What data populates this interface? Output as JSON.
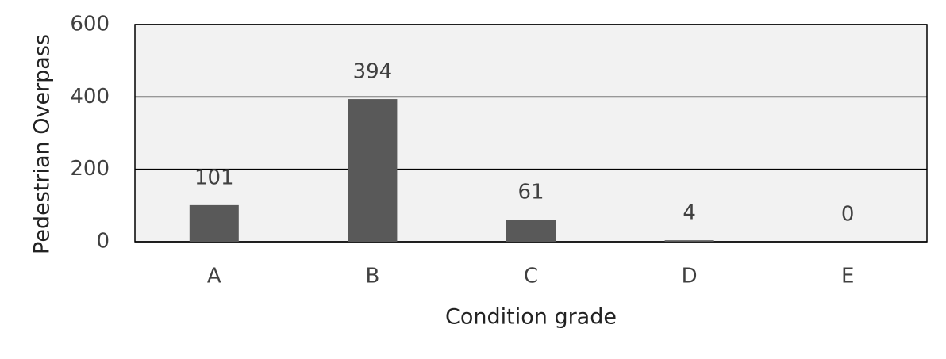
{
  "chart_data": {
    "type": "bar",
    "x_label": "Condition grade",
    "y_label": "Pedestrian Overpass",
    "categories": [
      "A",
      "B",
      "C",
      "D",
      "E"
    ],
    "values": [
      101,
      394,
      61,
      4,
      0
    ],
    "color": "#595959",
    "ylim": [
      0,
      600
    ],
    "yticks": [
      0,
      200,
      400,
      600
    ],
    "grid": true
  }
}
